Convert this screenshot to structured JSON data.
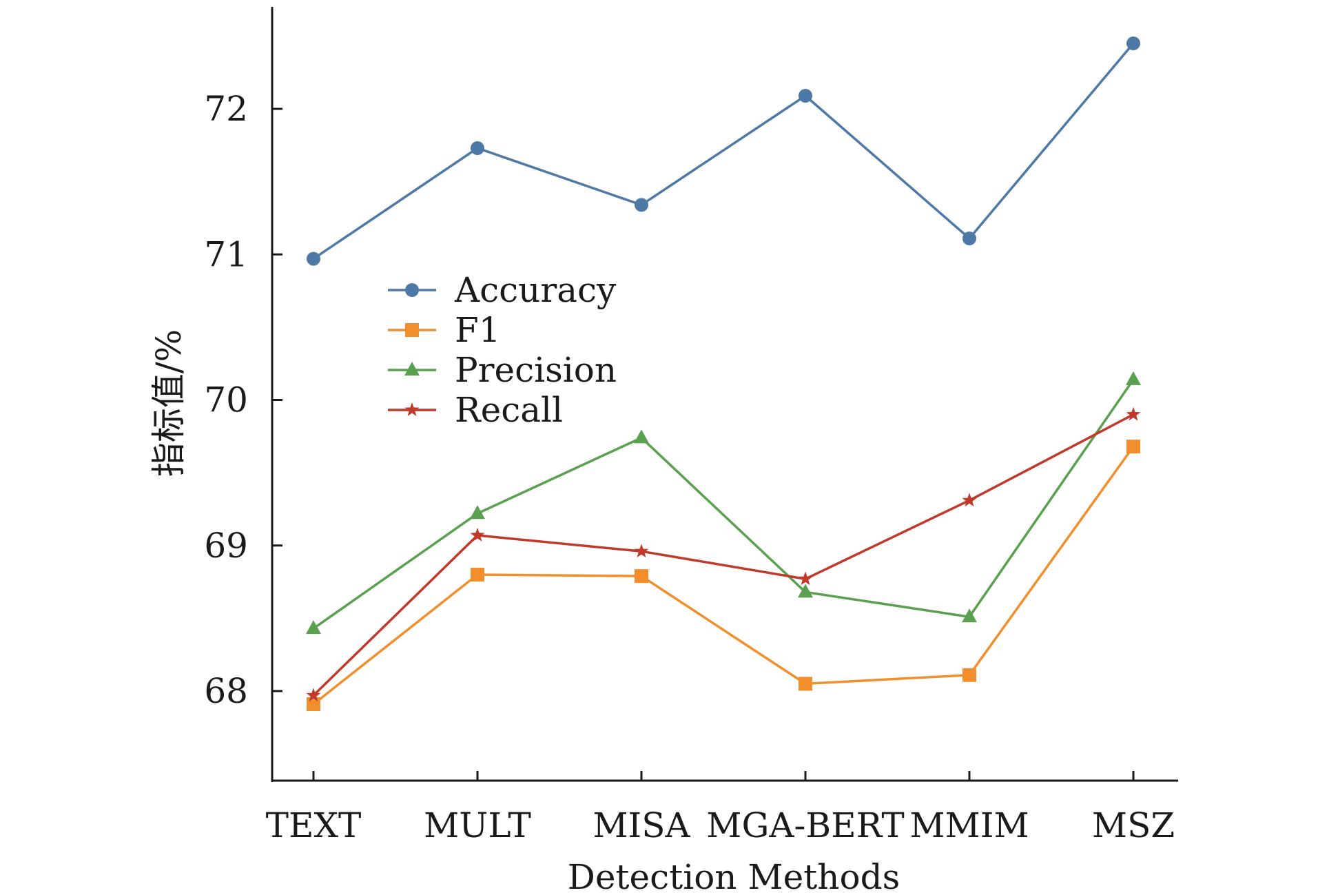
{
  "chart_data": {
    "type": "line",
    "categories": [
      "TEXT",
      "MULT",
      "MISA",
      "MGA-BERT",
      "MMIM",
      "MSZ"
    ],
    "series": [
      {
        "name": "Accuracy",
        "values": [
          70.97,
          71.73,
          71.34,
          72.09,
          71.11,
          72.45
        ],
        "color": "#4e79a7",
        "marker": "circle"
      },
      {
        "name": "F1",
        "values": [
          67.91,
          68.8,
          68.79,
          68.05,
          68.11,
          69.68
        ],
        "color": "#f28e2b",
        "marker": "square"
      },
      {
        "name": "Precision",
        "values": [
          68.43,
          69.22,
          69.74,
          68.68,
          68.51,
          70.14
        ],
        "color": "#59a14f",
        "marker": "triangle"
      },
      {
        "name": "Recall",
        "values": [
          67.97,
          69.07,
          68.96,
          68.77,
          69.31,
          69.9
        ],
        "color": "#c0392b",
        "marker": "star"
      }
    ],
    "xlabel": "Detection Methods",
    "ylabel": "指标值/%",
    "yticks": [
      68,
      69,
      70,
      71,
      72
    ],
    "ylim": [
      67.4,
      72.7
    ],
    "grid": false,
    "legend": "upper-left-inside"
  }
}
